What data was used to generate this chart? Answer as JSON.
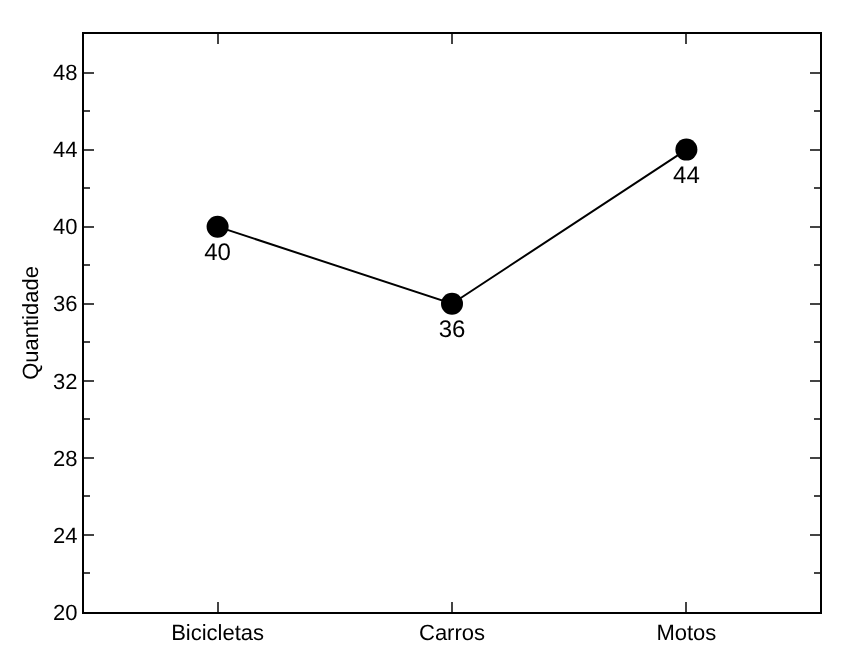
{
  "chart_data": {
    "type": "line",
    "ylabel": "Quantidade",
    "categories": [
      "Bicicletas",
      "Carros",
      "Motos"
    ],
    "series": [
      {
        "color": "#000000",
        "values": [
          40,
          36,
          44
        ]
      }
    ],
    "ylim": [
      20,
      50
    ],
    "yticks": [
      20,
      24,
      28,
      32,
      36,
      40,
      44,
      48
    ],
    "data_labels": true,
    "marker": "circle",
    "line_style": "solid"
  }
}
